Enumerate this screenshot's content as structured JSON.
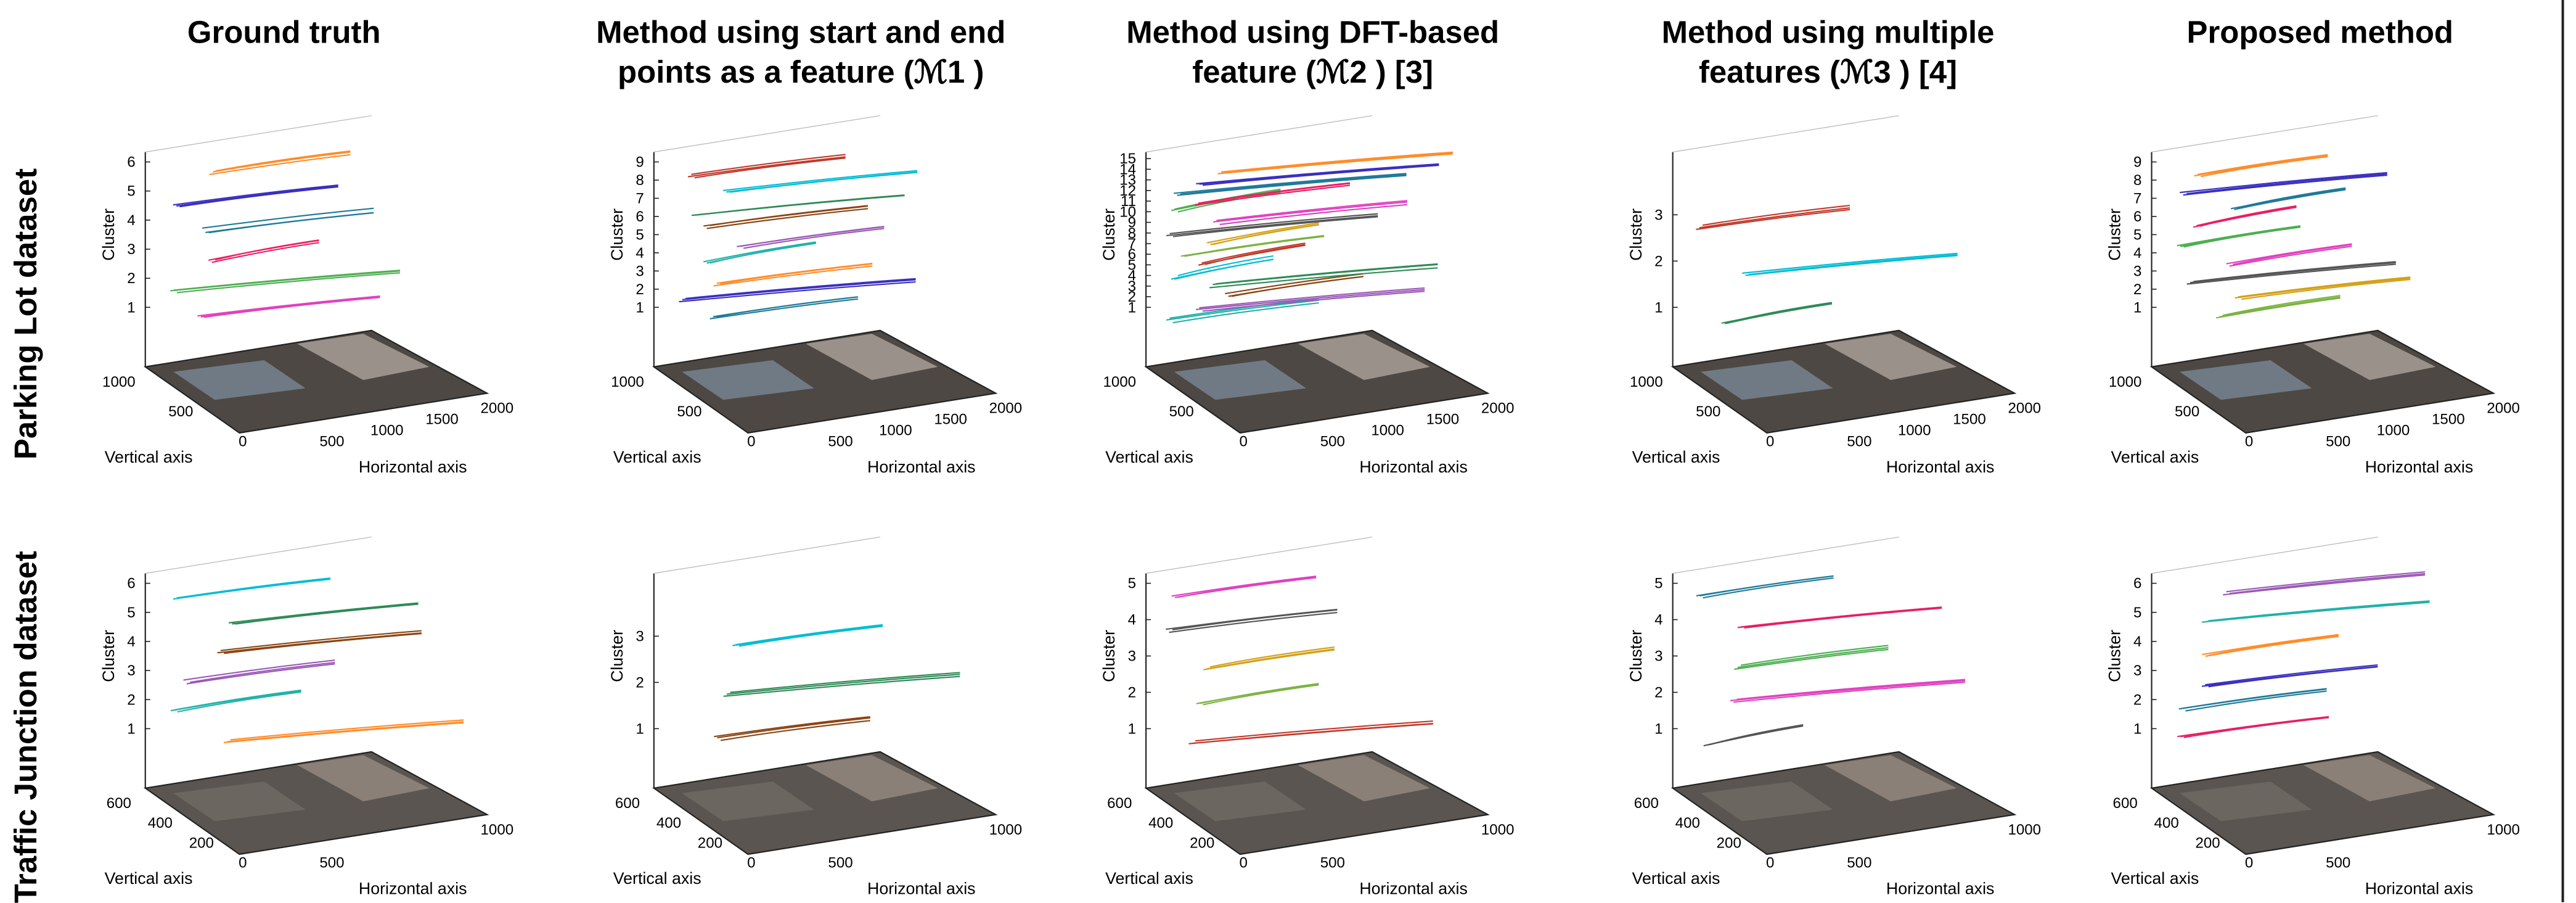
{
  "columns": [
    {
      "lines": [
        "Ground truth"
      ]
    },
    {
      "lines": [
        "Method using start and end",
        "points as a feature (ℳ1 )"
      ]
    },
    {
      "lines": [
        "Method using DFT-based",
        "feature (ℳ2 ) [3]"
      ]
    },
    {
      "lines": [
        "Method using multiple",
        "features (ℳ3 ) [4]"
      ]
    },
    {
      "lines": [
        "Proposed method"
      ]
    }
  ],
  "rows": [
    "Parking Lot dataset",
    "Traffic Junction dataset"
  ],
  "axis_labels": {
    "cluster": "Cluster",
    "vertical": "Vertical axis",
    "horizontal": "Horizontal axis"
  },
  "panels": [
    [
      {
        "cluster_ticks": [
          1,
          2,
          3,
          4,
          5,
          6
        ],
        "vertical_ticks": [
          1000,
          500,
          0
        ],
        "horizontal_ticks": [
          500,
          1000,
          1500,
          2000
        ]
      },
      {
        "cluster_ticks": [
          1,
          2,
          3,
          4,
          5,
          6,
          7,
          8,
          9
        ],
        "vertical_ticks": [
          1000,
          500,
          0
        ],
        "horizontal_ticks": [
          500,
          1000,
          1500,
          2000
        ]
      },
      {
        "cluster_ticks": [
          1,
          2,
          3,
          4,
          5,
          6,
          7,
          8,
          9,
          10,
          11,
          12,
          13,
          14,
          15
        ],
        "vertical_ticks": [
          1000,
          500,
          0
        ],
        "horizontal_ticks": [
          500,
          1000,
          1500,
          2000
        ]
      },
      {
        "cluster_ticks": [
          1,
          2,
          3
        ],
        "vertical_ticks": [
          1000,
          500,
          0
        ],
        "horizontal_ticks": [
          500,
          1000,
          1500,
          2000
        ]
      },
      {
        "cluster_ticks": [
          1,
          2,
          3,
          4,
          5,
          6,
          7,
          8,
          9
        ],
        "vertical_ticks": [
          1000,
          500,
          0
        ],
        "horizontal_ticks": [
          500,
          1000,
          1500,
          2000
        ]
      }
    ],
    [
      {
        "cluster_ticks": [
          1,
          2,
          3,
          4,
          5,
          6
        ],
        "vertical_ticks": [
          600,
          400,
          200,
          0
        ],
        "horizontal_ticks": [
          500,
          1000
        ]
      },
      {
        "cluster_ticks": [
          1,
          2,
          3
        ],
        "vertical_ticks": [
          600,
          400,
          200,
          0
        ],
        "horizontal_ticks": [
          500,
          1000
        ]
      },
      {
        "cluster_ticks": [
          1,
          2,
          3,
          4,
          5
        ],
        "vertical_ticks": [
          600,
          400,
          200,
          0
        ],
        "horizontal_ticks": [
          500,
          1000
        ]
      },
      {
        "cluster_ticks": [
          1,
          2,
          3,
          4,
          5
        ],
        "vertical_ticks": [
          600,
          400,
          200,
          0
        ],
        "horizontal_ticks": [
          500,
          1000
        ]
      },
      {
        "cluster_ticks": [
          1,
          2,
          3,
          4,
          5,
          6
        ],
        "vertical_ticks": [
          600,
          400,
          200,
          0
        ],
        "horizontal_ticks": [
          500,
          1000
        ]
      }
    ]
  ]
}
